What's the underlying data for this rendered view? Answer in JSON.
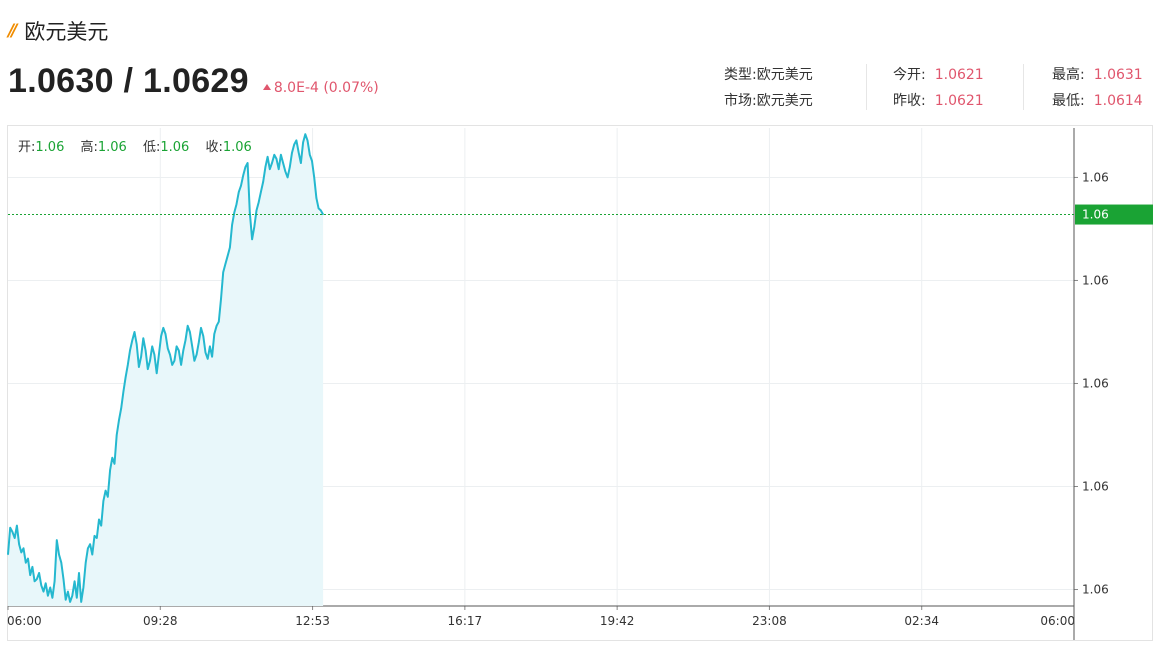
{
  "header": {
    "title": "欧元美元",
    "price": "1.0630 / 1.0629",
    "change": "8.0E-4 (0.07%)"
  },
  "stats": {
    "type_label": "类型:",
    "type_value": "欧元美元",
    "market_label": "市场:",
    "market_value": "欧元美元",
    "open_label": "今开:",
    "open_value": "1.0621",
    "prev_close_label": "昨收:",
    "prev_close_value": "1.0621",
    "high_label": "最高:",
    "high_value": "1.0631",
    "low_label": "最低:",
    "low_value": "1.0614"
  },
  "ohlc": {
    "open_label": "开:",
    "open_value": "1.06",
    "high_label": "高:",
    "high_value": "1.06",
    "low_label": "低:",
    "low_value": "1.06",
    "close_label": "收:",
    "close_value": "1.06"
  },
  "colors": {
    "line": "#25b8cf",
    "area": "#e8f7fa",
    "current_marker": "#1aa334",
    "up": "#e0566d"
  },
  "chart_data": {
    "type": "area",
    "title": "",
    "xlabel": "",
    "ylabel": "",
    "x_ticks": [
      "06:00",
      "09:28",
      "12:53",
      "16:17",
      "19:42",
      "23:08",
      "02:34",
      "06:00"
    ],
    "y_ticks": [
      "1.06",
      "1.06",
      "1.06",
      "1.06",
      "1.06"
    ],
    "y_tick_values": [
      1.063,
      1.0625,
      1.062,
      1.0615,
      1.061
    ],
    "current_value": 1.06282,
    "current_label": "1.06",
    "ylim": [
      1.06092,
      1.06324
    ],
    "grid": true,
    "series": [
      {
        "x_minutes": [
          0,
          3,
          6,
          9,
          12,
          15,
          18,
          21,
          24,
          27,
          30,
          33,
          36,
          39,
          42,
          45,
          48,
          51,
          54,
          57,
          60,
          63,
          66,
          69,
          72,
          75,
          78,
          81,
          84,
          87,
          90,
          93,
          96,
          99,
          102,
          105,
          108,
          111,
          114,
          117,
          120,
          123,
          126,
          129,
          132,
          135,
          138,
          141,
          144,
          147,
          150,
          153,
          156,
          159,
          162,
          165,
          168,
          171,
          174,
          177,
          180,
          183,
          186,
          189,
          192,
          195,
          198,
          201,
          204,
          207,
          210,
          213,
          216,
          219,
          222,
          225,
          228,
          231,
          234,
          237,
          240,
          243,
          246,
          249,
          252,
          255,
          258,
          261,
          264,
          267,
          270,
          273,
          276,
          279,
          282,
          285,
          288,
          291,
          294,
          297,
          300,
          303,
          306,
          309,
          312,
          315,
          318,
          321,
          324,
          327,
          330,
          333,
          336,
          339,
          342,
          345,
          348,
          351,
          354,
          357,
          360,
          363,
          366,
          369,
          372,
          375,
          378,
          381,
          384,
          387,
          390,
          393,
          396,
          399,
          402,
          405,
          408,
          411,
          414,
          417,
          420,
          423,
          426
        ],
        "values": [
          1.06117,
          1.0613,
          1.06128,
          1.06125,
          1.06131,
          1.06122,
          1.06118,
          1.0612,
          1.06113,
          1.06115,
          1.06107,
          1.06111,
          1.06104,
          1.06105,
          1.06108,
          1.06102,
          1.06099,
          1.06103,
          1.06097,
          1.06101,
          1.06096,
          1.06104,
          1.06124,
          1.06117,
          1.06113,
          1.06105,
          1.06095,
          1.06099,
          1.06094,
          1.06097,
          1.06104,
          1.06096,
          1.06108,
          1.06094,
          1.06101,
          1.06113,
          1.0612,
          1.06122,
          1.06117,
          1.06126,
          1.06125,
          1.06134,
          1.06131,
          1.06143,
          1.06148,
          1.06145,
          1.06158,
          1.06164,
          1.06161,
          1.06175,
          1.06182,
          1.06188,
          1.06196,
          1.06203,
          1.06209,
          1.06216,
          1.06221,
          1.06225,
          1.06219,
          1.06208,
          1.06213,
          1.06222,
          1.06216,
          1.06207,
          1.06211,
          1.06218,
          1.06214,
          1.06205,
          1.06214,
          1.06223,
          1.06227,
          1.06224,
          1.06217,
          1.06214,
          1.06209,
          1.06211,
          1.06218,
          1.06216,
          1.06209,
          1.06216,
          1.06221,
          1.06228,
          1.06225,
          1.06218,
          1.06211,
          1.06214,
          1.0622,
          1.06227,
          1.06223,
          1.06215,
          1.06212,
          1.06218,
          1.06213,
          1.06224,
          1.06228,
          1.0623,
          1.06241,
          1.06254,
          1.06258,
          1.06262,
          1.06266,
          1.06277,
          1.06283,
          1.06287,
          1.06293,
          1.06296,
          1.06301,
          1.06305,
          1.06307,
          1.06283,
          1.0627,
          1.06276,
          1.06284,
          1.06288,
          1.06293,
          1.06298,
          1.06305,
          1.0631,
          1.06304,
          1.06307,
          1.06311,
          1.06309,
          1.06304,
          1.06311,
          1.06307,
          1.06303,
          1.063,
          1.06305,
          1.06312,
          1.06316,
          1.06318,
          1.06312,
          1.06307,
          1.06317,
          1.06321,
          1.06318,
          1.06311,
          1.06308,
          1.063,
          1.0629,
          1.06285,
          1.06284,
          1.06282
        ]
      }
    ]
  }
}
